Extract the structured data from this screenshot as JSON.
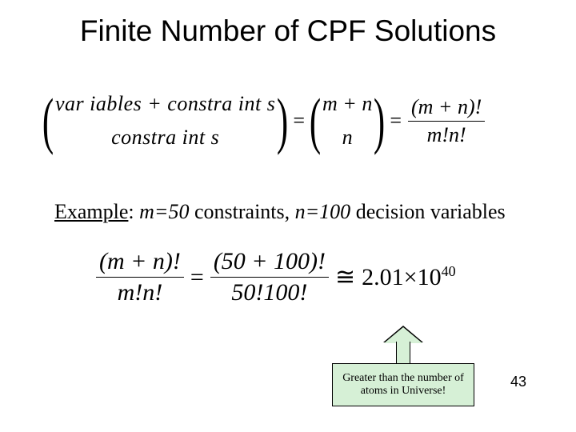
{
  "title": "Finite Number of CPF Solutions",
  "formula1": {
    "top_word": "var iables + constra int s",
    "bottom_word": "constra int s",
    "mid_top": "m + n",
    "mid_bottom": "n",
    "right_num": "(m + n)!",
    "right_den": "m!n!"
  },
  "example": {
    "label": "Example",
    "colon": ": ",
    "m_label": "m=50",
    "m_text": " constraints, ",
    "n_label": "n=100",
    "n_text": " decision variables"
  },
  "formula2": {
    "left_num": "(m + n)!",
    "left_den": "m!n!",
    "mid_num": "(50 + 100)!",
    "mid_den": "50!100!",
    "approx": "≅",
    "result_mant": "2.01",
    "result_times": "×",
    "result_base": "10",
    "result_exp": "40"
  },
  "callout": "Greater than the number of atoms in Universe!",
  "pagenum": "43",
  "colors": {
    "callout_bg": "#d6f0d6",
    "callout_border": "#000000",
    "text": "#000000",
    "background": "#ffffff"
  }
}
